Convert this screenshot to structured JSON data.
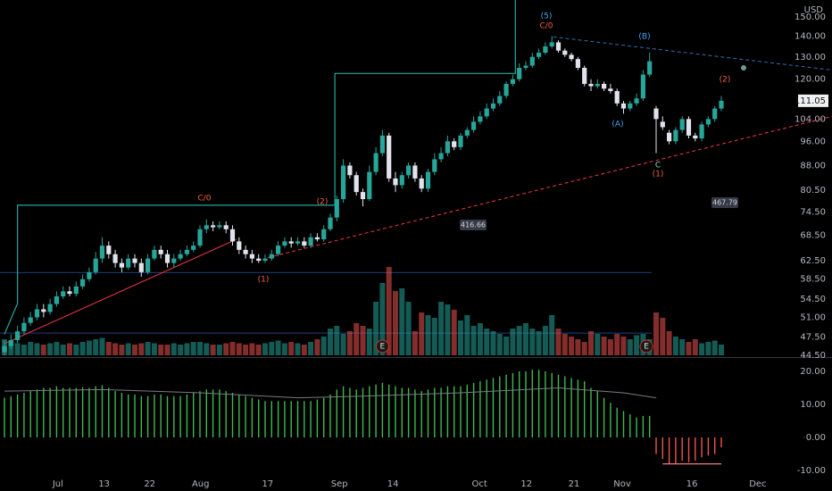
{
  "chart_data": {
    "type": "candlestick",
    "currency": "USD",
    "log_scale": true,
    "ylim": [
      44.5,
      159.5
    ],
    "yticks": [
      {
        "value": 44.5,
        "label": "44.50"
      },
      {
        "value": 47.5,
        "label": "47.50"
      },
      {
        "value": 51,
        "label": "51.00"
      },
      {
        "value": 54.5,
        "label": "54.50"
      },
      {
        "value": 58.5,
        "label": "58.50"
      },
      {
        "value": 62.5,
        "label": "62.50"
      },
      {
        "value": 68.5,
        "label": "68.50"
      },
      {
        "value": 74.5,
        "label": "74.50"
      },
      {
        "value": 80.5,
        "label": "80.50"
      },
      {
        "value": 88,
        "label": "88.00"
      },
      {
        "value": 96,
        "label": "96.00"
      },
      {
        "value": 104,
        "label": "104.00"
      },
      {
        "value": 120,
        "label": "120.00"
      },
      {
        "value": 130,
        "label": "130.00"
      },
      {
        "value": 140,
        "label": "140.00"
      },
      {
        "value": 150,
        "label": "150.00"
      }
    ],
    "xticks": [
      {
        "value": 8.2,
        "label": "Jul"
      },
      {
        "value": 15.3,
        "label": "13"
      },
      {
        "value": 22.3,
        "label": "22"
      },
      {
        "value": 30.1,
        "label": "Aug"
      },
      {
        "value": 40.4,
        "label": "17"
      },
      {
        "value": 51.4,
        "label": "Sep"
      },
      {
        "value": 59.6,
        "label": "14"
      },
      {
        "value": 72.9,
        "label": "Oct"
      },
      {
        "value": 80.1,
        "label": "12"
      },
      {
        "value": 87.4,
        "label": "21"
      },
      {
        "value": 94.8,
        "label": "Nov"
      },
      {
        "value": 105.5,
        "label": "16"
      },
      {
        "value": 115.6,
        "label": "Dec"
      }
    ],
    "up_color": "#26a69a",
    "down_color": "#e0e3eb",
    "volume_up_color": "rgba(38,166,154,0.55)",
    "volume_down_color": "rgba(239,83,80,0.55)",
    "open": [
      45,
      46,
      47,
      48.5,
      50,
      51,
      52.5,
      52,
      53.5,
      55,
      56,
      55.5,
      57,
      58.5,
      60,
      63,
      66,
      64,
      62,
      61,
      63,
      62,
      60,
      63,
      65,
      64,
      62,
      63,
      64,
      65,
      66,
      70,
      71,
      70.5,
      71,
      70,
      67,
      65,
      64,
      63,
      62.5,
      63,
      64,
      66,
      67,
      66.5,
      67,
      66,
      68,
      67.5,
      70,
      73,
      78,
      88,
      85,
      80,
      78,
      86,
      92,
      98,
      84,
      82,
      85,
      88,
      84,
      81,
      86,
      90,
      92,
      96,
      94,
      98,
      100,
      103,
      105,
      108,
      110,
      113,
      118,
      120,
      125,
      126,
      130,
      132,
      135,
      137,
      133,
      131,
      129,
      125,
      118,
      117,
      118,
      116,
      115,
      110,
      108,
      110,
      112,
      122,
      108,
      103,
      99,
      96,
      100,
      104,
      98,
      97,
      102,
      104,
      108
    ],
    "high": [
      47,
      48,
      49.5,
      51,
      52,
      53.5,
      53.5,
      54.5,
      56,
      57,
      57,
      58,
      59.5,
      61,
      64.5,
      68,
      67,
      65,
      63,
      64,
      64,
      63,
      64,
      66,
      66,
      65,
      64,
      65,
      66,
      67,
      71,
      72.5,
      72,
      72,
      72,
      71,
      68,
      66,
      65,
      64,
      64,
      65,
      67,
      68,
      68,
      68,
      68,
      69,
      69,
      71,
      74,
      79,
      90,
      89,
      86,
      81,
      88,
      94,
      100,
      99,
      86,
      86,
      89,
      89,
      85,
      87,
      92,
      94,
      98,
      97,
      99,
      101,
      105,
      107,
      110,
      112,
      115,
      119,
      122,
      127,
      128,
      132,
      134,
      137,
      140,
      138,
      134,
      132,
      130,
      126,
      120,
      120,
      119,
      118,
      116,
      111,
      111,
      114,
      124,
      132,
      109,
      105,
      100,
      101,
      105,
      105,
      99,
      103,
      105,
      109,
      113
    ],
    "low": [
      44.5,
      45.5,
      46.5,
      48,
      49.5,
      50.5,
      51,
      51.5,
      53,
      54.5,
      55,
      55,
      56.5,
      58,
      59.5,
      62,
      63,
      61,
      60,
      60.5,
      61,
      59,
      59.5,
      62.5,
      63,
      61,
      61,
      62.5,
      63.5,
      64.5,
      65.5,
      69,
      69.5,
      70,
      69,
      66,
      64,
      63,
      62,
      62,
      62,
      62.5,
      63.5,
      65.5,
      65.5,
      66,
      65.5,
      65.5,
      67,
      67,
      69.5,
      72,
      77,
      84,
      79,
      76,
      77.5,
      85,
      91,
      83,
      80,
      81,
      84,
      83,
      80,
      80,
      85,
      89,
      91,
      93,
      93,
      97,
      99,
      102,
      104,
      107,
      109,
      112,
      117,
      119,
      124,
      125,
      129,
      131,
      134,
      132,
      130,
      128,
      124,
      117,
      115,
      116,
      115,
      114,
      109,
      106,
      107,
      109,
      111,
      121,
      92,
      100,
      95,
      95,
      99,
      97,
      96,
      96,
      101,
      103,
      107
    ],
    "close": [
      46,
      47,
      48.5,
      50,
      51,
      52.5,
      52,
      53.5,
      55,
      56,
      55.5,
      57,
      58.5,
      60,
      63,
      66,
      64,
      62,
      61,
      63,
      62,
      60,
      63,
      65,
      64,
      62,
      63,
      64,
      65,
      66,
      70,
      71,
      70.5,
      71,
      70,
      67,
      65,
      64,
      63,
      62.5,
      63,
      64,
      66,
      67,
      66.5,
      67,
      66,
      68,
      67.5,
      70,
      73,
      78,
      88,
      85,
      80,
      78,
      86,
      92,
      98,
      84,
      82,
      85,
      88,
      84,
      81,
      86,
      90,
      92,
      96,
      94,
      98,
      100,
      103,
      105,
      108,
      110,
      113,
      118,
      120,
      125,
      126,
      130,
      132,
      135,
      137,
      133,
      131,
      129,
      125,
      118,
      117,
      118,
      116,
      115,
      110,
      108,
      110,
      112,
      122,
      128,
      104,
      101,
      96,
      100,
      104,
      98,
      97,
      102,
      104,
      108,
      111.05
    ],
    "vlim": [
      0,
      100
    ],
    "volume": [
      12,
      10,
      9,
      8,
      10,
      9,
      8,
      9,
      10,
      8,
      9,
      8,
      10,
      11,
      12,
      13,
      10,
      9,
      8,
      9,
      8,
      9,
      10,
      9,
      8,
      8,
      9,
      8,
      9,
      10,
      10,
      9,
      8,
      8,
      9,
      10,
      9,
      8,
      9,
      8,
      9,
      10,
      11,
      9,
      10,
      9,
      8,
      10,
      12,
      14,
      20,
      22,
      16,
      18,
      24,
      22,
      20,
      40,
      54,
      66,
      48,
      50,
      40,
      18,
      32,
      30,
      28,
      40,
      38,
      34,
      26,
      30,
      22,
      24,
      20,
      18,
      16,
      14,
      20,
      22,
      24,
      20,
      18,
      22,
      30,
      20,
      16,
      14,
      12,
      10,
      18,
      16,
      14,
      12,
      16,
      14,
      12,
      15,
      16,
      12,
      32,
      28,
      18,
      14,
      12,
      10,
      12,
      9,
      10,
      11,
      8
    ],
    "last_price": 111.05,
    "step_line": {
      "color": "#26a69a",
      "x": [
        0,
        2,
        2,
        50.7,
        50.7,
        78.4,
        78.4
      ],
      "values": [
        48,
        53.6,
        76.3,
        76.3,
        122.5,
        122.5,
        159.5
      ]
    },
    "levels": {
      "color": "#1e3f7a",
      "values": [
        59.9,
        48.2
      ]
    },
    "trendlines": [
      {
        "color": "#f23645",
        "dashed": false,
        "x": [
          0,
          35.6
        ],
        "values": [
          46.4,
          67.5
        ]
      },
      {
        "color": "#f23645",
        "dashed": true,
        "x": [
          40.4,
          127
        ],
        "values": [
          63.2,
          105
        ]
      },
      {
        "color": "#2f6fb0",
        "dashed": true,
        "x": [
          84.2,
          127
        ],
        "values": [
          139.7,
          124
        ]
      }
    ],
    "annotations": [
      {
        "text": "C/0",
        "color": "#f0643c"
      },
      {
        "text": "(2)",
        "color": "#f0643c"
      },
      {
        "text": "(1)",
        "color": "#f0643c"
      },
      {
        "text": "(5)",
        "color": "#42a5f5"
      },
      {
        "text": "C/0",
        "color": "#f0643c"
      },
      {
        "text": "(B)",
        "color": "#42a5f5"
      },
      {
        "text": "(A)",
        "color": "#42a5f5"
      },
      {
        "text": "C",
        "color": "#7fd8cc"
      },
      {
        "text": "(1)",
        "color": "#f0643c"
      },
      {
        "text": "(2)",
        "color": "#f0643c"
      }
    ],
    "measure_labels": [
      416.66,
      467.79
    ],
    "earnings": [
      {
        "x": 58,
        "label": "E"
      },
      {
        "x": 98.5,
        "label": "E"
      }
    ],
    "oscillator": {
      "ylim": [
        -13.5,
        23.5
      ],
      "yticks": [
        {
          "value": 20,
          "label": "20.00"
        },
        {
          "value": 10,
          "label": "10.00"
        },
        {
          "value": 0,
          "label": "0.00"
        },
        {
          "value": -10,
          "label": "-10.00"
        }
      ],
      "positive_color": "#3fb950",
      "negative_color": "#ef5350",
      "values": [
        12,
        12.5,
        13,
        13.5,
        14,
        14.5,
        15,
        15,
        15.5,
        15,
        15,
        15,
        15.2,
        15,
        15.5,
        15.8,
        15,
        14,
        13.5,
        13,
        13,
        12.5,
        12.5,
        13,
        13,
        12.5,
        12.5,
        12.5,
        13,
        13.5,
        14,
        14.5,
        14.5,
        14.5,
        14,
        13.5,
        13,
        12.5,
        12,
        11.5,
        11,
        11,
        11,
        11,
        11,
        11,
        11,
        11,
        11.5,
        12,
        13,
        14.5,
        15.5,
        15,
        14.5,
        15,
        15.5,
        16,
        16.5,
        16,
        15.5,
        15,
        15,
        14.5,
        14,
        14.5,
        15,
        15,
        15.5,
        15.5,
        15.5,
        16,
        16.5,
        17,
        17.5,
        18,
        18.5,
        19,
        19.5,
        20,
        20,
        20.5,
        20.5,
        20,
        19.5,
        19,
        18.5,
        18,
        17.5,
        17,
        15,
        14,
        12,
        10.5,
        9,
        8,
        7,
        6,
        6.5,
        6.5,
        -5,
        -6.5,
        -8,
        -8,
        -7,
        -7.5,
        -7,
        -6,
        -5.5,
        -5,
        -3
      ],
      "signal": {
        "color": "#787b86",
        "x": [
          0,
          15,
          30,
          45,
          55,
          70,
          85,
          95,
          100
        ],
        "values": [
          14,
          14.5,
          13.5,
          12,
          12.5,
          13.5,
          15,
          13.5,
          12
        ]
      },
      "level": {
        "color": "#f77c80",
        "x": [
          101,
          110
        ],
        "values": [
          -8,
          -8
        ]
      }
    }
  }
}
